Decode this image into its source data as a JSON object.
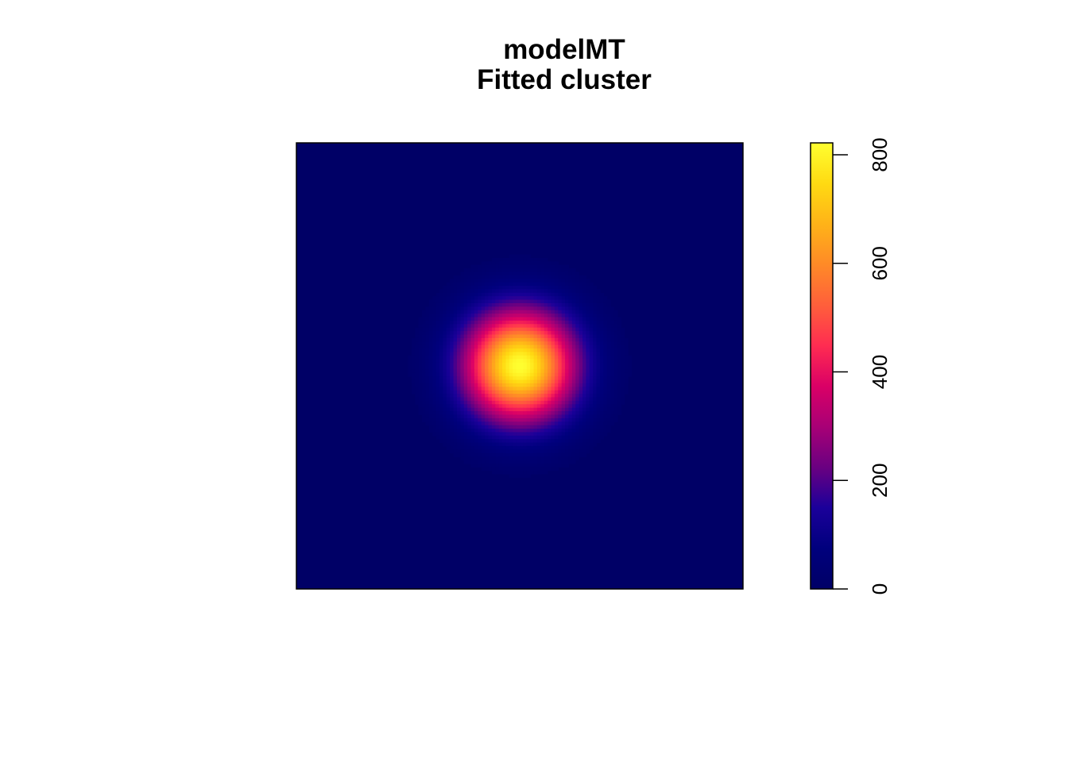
{
  "chart_data": {
    "type": "heatmap",
    "title": "modelMT",
    "subtitle": "Fitted cluster",
    "description_values": {
      "peak_value": 822,
      "center": [
        0.5,
        0.5
      ],
      "spread": 0.085
    },
    "colorbar": {
      "min": 0,
      "max": 822,
      "ticks": [
        0,
        200,
        400,
        600,
        800
      ],
      "tick_labels": [
        "0",
        "200",
        "400",
        "600",
        "800"
      ],
      "palette": [
        "#000066",
        "#00007D",
        "#1B009A",
        "#6A0081",
        "#A80076",
        "#DA0066",
        "#FF2C51",
        "#FF5F3B",
        "#FF8A27",
        "#FFB318",
        "#FFDA12",
        "#FFFF30"
      ]
    },
    "axes_shown": false,
    "grid": false
  }
}
